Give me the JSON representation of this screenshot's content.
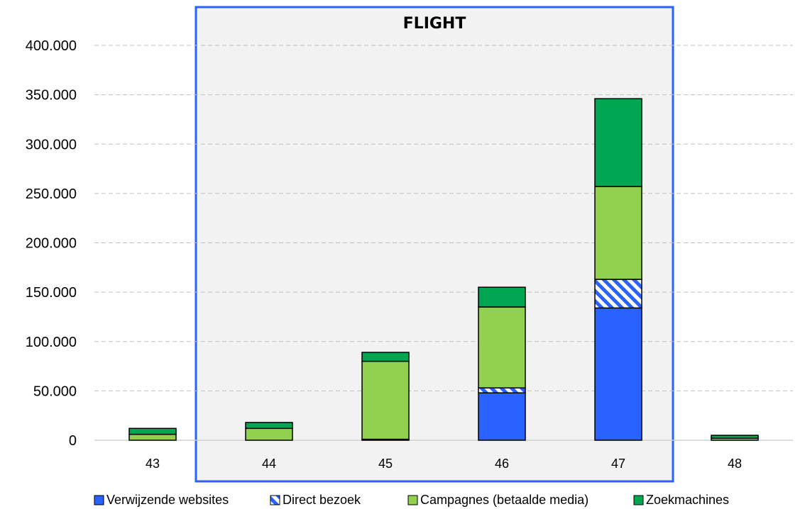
{
  "chart_data": {
    "type": "bar",
    "stacked": true,
    "categories": [
      "43",
      "44",
      "45",
      "46",
      "47",
      "48"
    ],
    "series": [
      {
        "name": "Verwijzende websites",
        "values": [
          0,
          0,
          1000,
          48000,
          134000,
          0
        ],
        "color": "#2962ff",
        "pattern": "solid"
      },
      {
        "name": "Direct bezoek",
        "values": [
          0,
          0,
          0,
          5000,
          29000,
          0
        ],
        "color": "#2962ff",
        "pattern": "hatch"
      },
      {
        "name": "Campagnes (betaalde media)",
        "values": [
          6000,
          12000,
          79000,
          82000,
          94000,
          2000
        ],
        "color": "#92d050",
        "pattern": "solid"
      },
      {
        "name": "Zoekmachines",
        "values": [
          6000,
          6000,
          9000,
          20000,
          89000,
          3000
        ],
        "color": "#00a651",
        "pattern": "solid"
      }
    ],
    "yticks": [
      "0",
      "50.000",
      "100.000",
      "150.000",
      "200.000",
      "250.000",
      "300.000",
      "350.000",
      "400.000"
    ],
    "ylim": [
      0,
      400000
    ],
    "grid": true,
    "legend_position": "bottom",
    "annotation": {
      "label": "FLIGHT",
      "from_category": "44",
      "to_category": "47",
      "border_color": "#2962ff",
      "fill_color": "#f2f2f2"
    }
  }
}
